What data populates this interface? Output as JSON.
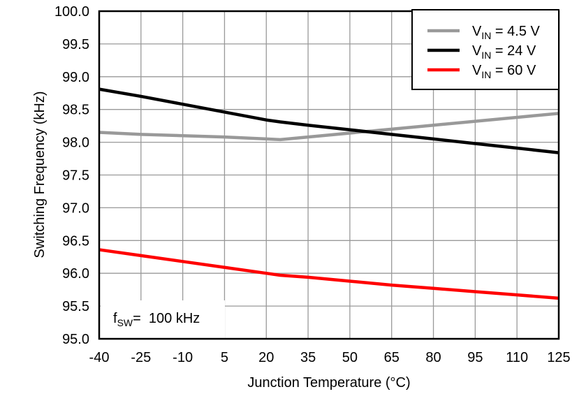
{
  "chart_data": {
    "type": "line",
    "title": "",
    "xlabel": "Junction Temperature (°C)",
    "ylabel": "Switching Frequency (kHz)",
    "xlim": [
      -40,
      125
    ],
    "ylim": [
      95.0,
      100.0
    ],
    "xticks": [
      "-40",
      "-25",
      "-10",
      "5",
      "20",
      "35",
      "50",
      "65",
      "80",
      "95",
      "110",
      "125"
    ],
    "yticks": [
      "95.0",
      "95.5",
      "96.0",
      "96.5",
      "97.0",
      "97.5",
      "98.0",
      "98.5",
      "99.0",
      "99.5",
      "100.0"
    ],
    "grid": true,
    "legend_position": "top-right",
    "annotation": {
      "main": "f",
      "sub": "SW",
      "rest": "=  100 kHz"
    },
    "x": [
      -40,
      -25,
      -10,
      5,
      20,
      25,
      35,
      50,
      65,
      80,
      95,
      110,
      125
    ],
    "series": [
      {
        "name": "VIN = 4.5 V",
        "label_main": "V",
        "label_sub": "IN",
        "label_rest": " = 4.5 V",
        "color": "#999999",
        "values": [
          98.15,
          98.12,
          98.1,
          98.08,
          98.05,
          98.04,
          98.08,
          98.14,
          98.2,
          98.26,
          98.32,
          98.38,
          98.44
        ]
      },
      {
        "name": "VIN = 24 V",
        "label_main": "V",
        "label_sub": "IN",
        "label_rest": " = 24 V",
        "color": "#000000",
        "values": [
          98.81,
          98.7,
          98.58,
          98.46,
          98.34,
          98.31,
          98.26,
          98.19,
          98.12,
          98.05,
          97.98,
          97.91,
          97.84
        ]
      },
      {
        "name": "VIN = 60 V",
        "label_main": "V",
        "label_sub": "IN",
        "label_rest": " = 60 V",
        "color": "#ff0000",
        "values": [
          96.36,
          96.27,
          96.18,
          96.09,
          96.0,
          95.97,
          95.94,
          95.88,
          95.82,
          95.77,
          95.72,
          95.67,
          95.62
        ]
      }
    ]
  }
}
